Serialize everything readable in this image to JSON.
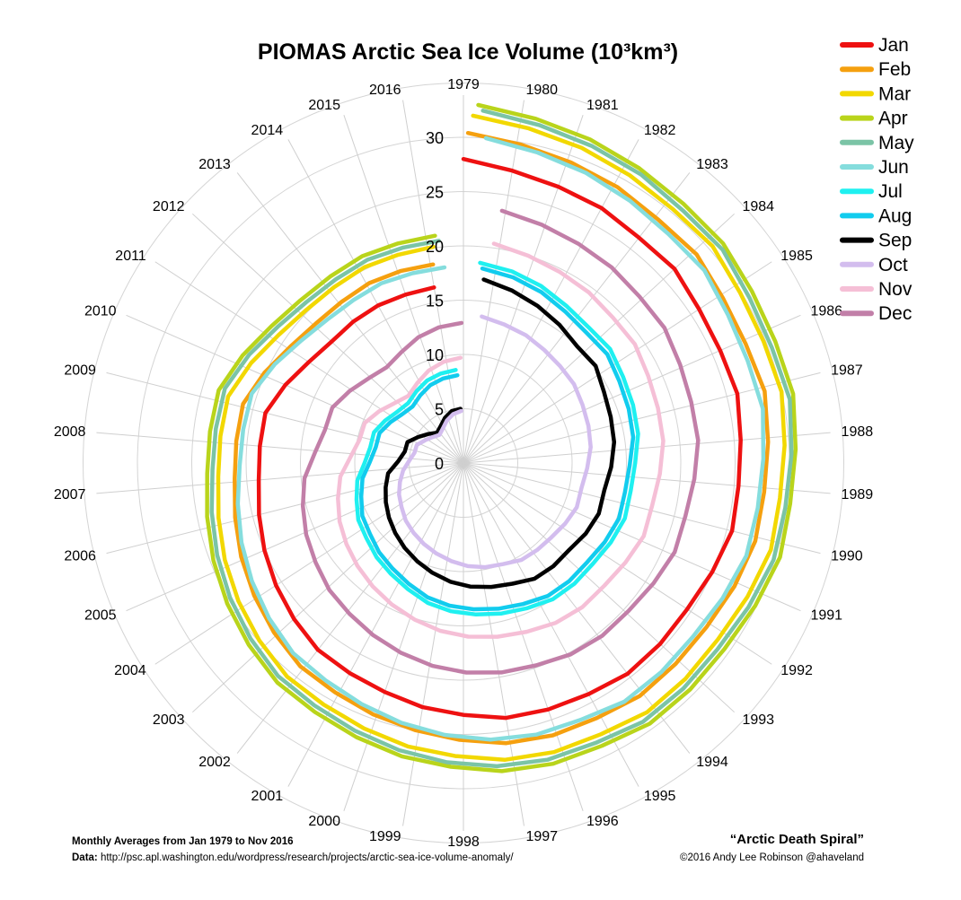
{
  "chart_data": {
    "type": "line",
    "coordinate_system": "polar",
    "title": "PIOMAS Arctic Sea Ice Volume (10³km³)",
    "radial_axis": {
      "range": [
        0,
        30
      ],
      "ticks": [
        0,
        5,
        10,
        15,
        20,
        25,
        30
      ]
    },
    "years": [
      "1979",
      "1980",
      "1981",
      "1982",
      "1983",
      "1984",
      "1985",
      "1986",
      "1987",
      "1988",
      "1989",
      "1990",
      "1991",
      "1992",
      "1993",
      "1994",
      "1995",
      "1996",
      "1997",
      "1998",
      "1999",
      "2000",
      "2001",
      "2002",
      "2003",
      "2004",
      "2005",
      "2006",
      "2007",
      "2008",
      "2009",
      "2010",
      "2011",
      "2012",
      "2013",
      "2014",
      "2015",
      "2016"
    ],
    "grid": true,
    "legend_position": "top-right",
    "series": [
      {
        "name": "Jan",
        "color": "#ee1111",
        "values": [
          28.0,
          27.3,
          26.9,
          26.7,
          26.3,
          26.4,
          25.9,
          25.8,
          26.0,
          25.6,
          25.4,
          25.5,
          25.0,
          24.6,
          24.6,
          24.6,
          24.2,
          24.0,
          23.8,
          23.2,
          22.8,
          22.3,
          22.0,
          21.8,
          21.2,
          20.6,
          20.0,
          19.4,
          18.9,
          18.8,
          18.8,
          17.9,
          17.0,
          16.5,
          16.5,
          16.5,
          16.4,
          16.4
        ]
      },
      {
        "name": "Feb",
        "color": "#f5a00f",
        "values": [
          30.4,
          29.8,
          29.4,
          29.1,
          28.7,
          28.8,
          28.3,
          28.2,
          28.5,
          28.1,
          27.8,
          27.8,
          27.4,
          27.0,
          26.9,
          26.9,
          26.5,
          26.4,
          26.1,
          25.5,
          25.0,
          24.6,
          24.2,
          24.0,
          23.4,
          22.8,
          22.2,
          21.6,
          21.1,
          21.0,
          21.0,
          20.1,
          19.2,
          18.7,
          18.6,
          18.7,
          18.6,
          18.5
        ]
      },
      {
        "name": "Mar",
        "color": "#f2d800",
        "values": [
          32.0,
          31.4,
          31.0,
          30.6,
          30.3,
          30.4,
          29.9,
          29.8,
          30.0,
          29.6,
          29.3,
          29.4,
          28.9,
          28.5,
          28.5,
          28.5,
          28.0,
          27.9,
          27.6,
          27.0,
          26.6,
          26.1,
          25.7,
          25.5,
          24.9,
          24.3,
          23.7,
          23.1,
          22.6,
          22.5,
          22.5,
          21.6,
          20.7,
          20.2,
          20.1,
          20.2,
          20.1,
          20.1
        ]
      },
      {
        "name": "Apr",
        "color": "#b9d41b",
        "values": [
          33.0,
          32.4,
          32.0,
          31.6,
          31.3,
          31.3,
          30.9,
          30.8,
          31.0,
          30.6,
          30.3,
          30.4,
          29.9,
          29.5,
          29.5,
          29.5,
          29.0,
          28.9,
          28.6,
          28.0,
          27.6,
          27.1,
          26.7,
          26.5,
          25.9,
          25.3,
          24.7,
          24.1,
          23.6,
          23.5,
          23.5,
          22.6,
          21.7,
          21.2,
          21.1,
          21.2,
          21.1,
          21.1
        ]
      },
      {
        "name": "May",
        "color": "#7bc4a6",
        "values": [
          32.5,
          31.9,
          31.5,
          31.2,
          30.8,
          30.9,
          30.4,
          30.3,
          30.6,
          30.2,
          29.9,
          29.9,
          29.4,
          29.0,
          29.0,
          29.0,
          28.5,
          28.4,
          28.1,
          27.6,
          27.1,
          26.6,
          26.2,
          26.0,
          25.4,
          24.8,
          24.2,
          23.6,
          23.1,
          23.0,
          23.0,
          22.1,
          21.2,
          20.7,
          20.6,
          20.7,
          20.6,
          20.6
        ]
      },
      {
        "name": "Jun",
        "color": "#85dddd",
        "values": [
          30.0,
          29.4,
          29.0,
          28.6,
          28.3,
          28.4,
          27.9,
          27.8,
          28.0,
          27.6,
          27.4,
          27.4,
          26.9,
          26.5,
          26.5,
          26.5,
          26.0,
          25.9,
          25.6,
          25.1,
          24.6,
          24.1,
          23.7,
          23.5,
          22.9,
          22.3,
          21.7,
          21.1,
          20.6,
          20.5,
          20.5,
          19.6,
          18.7,
          18.2,
          18.1,
          18.2,
          18.1,
          18.1
        ]
      },
      {
        "name": "Jul",
        "color": "#1ff0f0",
        "values": [
          18.5,
          18.2,
          17.8,
          17.3,
          17.0,
          17.1,
          16.7,
          16.5,
          16.3,
          15.8,
          15.6,
          15.7,
          15.4,
          15.1,
          15.1,
          15.0,
          14.6,
          14.3,
          14.0,
          13.7,
          13.3,
          12.7,
          12.2,
          11.8,
          11.3,
          11.0,
          10.4,
          9.9,
          9.1,
          8.7,
          8.7,
          8.2,
          7.7,
          7.5,
          7.9,
          8.3,
          8.5,
          8.6
        ]
      },
      {
        "name": "Aug",
        "color": "#12ccee",
        "values": [
          18.0,
          17.7,
          17.3,
          16.8,
          16.5,
          16.6,
          16.2,
          16.0,
          15.8,
          15.3,
          15.1,
          15.2,
          14.9,
          14.6,
          14.6,
          14.5,
          14.1,
          13.8,
          13.5,
          13.2,
          12.8,
          12.2,
          11.7,
          11.3,
          10.8,
          10.5,
          9.9,
          9.4,
          8.6,
          8.2,
          8.2,
          7.7,
          7.2,
          7.0,
          7.4,
          7.8,
          8.0,
          8.1
        ]
      },
      {
        "name": "Sep",
        "color": "#000000",
        "values": [
          17.0,
          16.5,
          16.0,
          15.5,
          15.0,
          15.1,
          14.5,
          14.2,
          14.0,
          13.6,
          13.2,
          13.3,
          13.0,
          12.6,
          12.6,
          12.5,
          12.0,
          11.7,
          11.4,
          11.0,
          10.5,
          10.0,
          9.5,
          9.0,
          8.5,
          8.0,
          7.5,
          7.0,
          6.0,
          5.5,
          5.5,
          4.8,
          4.2,
          3.7,
          4.0,
          4.5,
          4.9,
          5.0
        ]
      },
      {
        "name": "Oct",
        "color": "#d3bdee",
        "values": [
          13.6,
          13.3,
          13.1,
          12.8,
          12.6,
          12.5,
          12.2,
          12.0,
          11.8,
          11.4,
          11.1,
          11.2,
          10.9,
          10.6,
          10.5,
          10.4,
          10.0,
          9.8,
          9.5,
          9.1,
          8.7,
          8.3,
          7.9,
          7.5,
          7.0,
          6.6,
          6.1,
          5.6,
          5.0,
          4.6,
          4.6,
          4.1,
          3.7,
          3.4,
          3.7,
          4.2,
          4.6,
          4.8
        ]
      },
      {
        "name": "Nov",
        "color": "#f5bfd6",
        "values": [
          20.4,
          20.0,
          19.7,
          19.5,
          19.2,
          19.2,
          18.8,
          18.6,
          18.5,
          18.1,
          17.8,
          17.9,
          17.5,
          17.2,
          17.2,
          17.0,
          16.6,
          16.3,
          16.0,
          15.6,
          15.1,
          14.6,
          14.1,
          13.6,
          13.1,
          12.6,
          12.0,
          11.4,
          10.4,
          9.8,
          9.8,
          9.1,
          8.4,
          8.0,
          8.5,
          9.1,
          9.5,
          9.7
        ]
      },
      {
        "name": "Dec",
        "color": "#c27fa8",
        "values": [
          23.5,
          23.1,
          22.8,
          22.6,
          22.3,
          22.3,
          21.9,
          21.7,
          21.7,
          21.3,
          21.0,
          21.1,
          20.7,
          20.4,
          20.4,
          20.2,
          19.8,
          19.6,
          19.3,
          18.9,
          18.4,
          17.9,
          17.4,
          17.0,
          16.4,
          15.9,
          15.3,
          14.7,
          13.7,
          13.1,
          13.1,
          12.4,
          11.7,
          11.3,
          11.7,
          12.3,
          12.7,
          12.9
        ]
      }
    ]
  },
  "footer": {
    "subtitle": "Monthly Averages from Jan 1979 to Nov 2016",
    "data_label": "Data:",
    "data_url": " http://psc.apl.washington.edu/wordpress/research/projects/arctic-sea-ice-volume-anomaly/",
    "tagline": "“Arctic Death Spiral”",
    "credit": "©2016 Andy Lee Robinson @ahaveland"
  }
}
